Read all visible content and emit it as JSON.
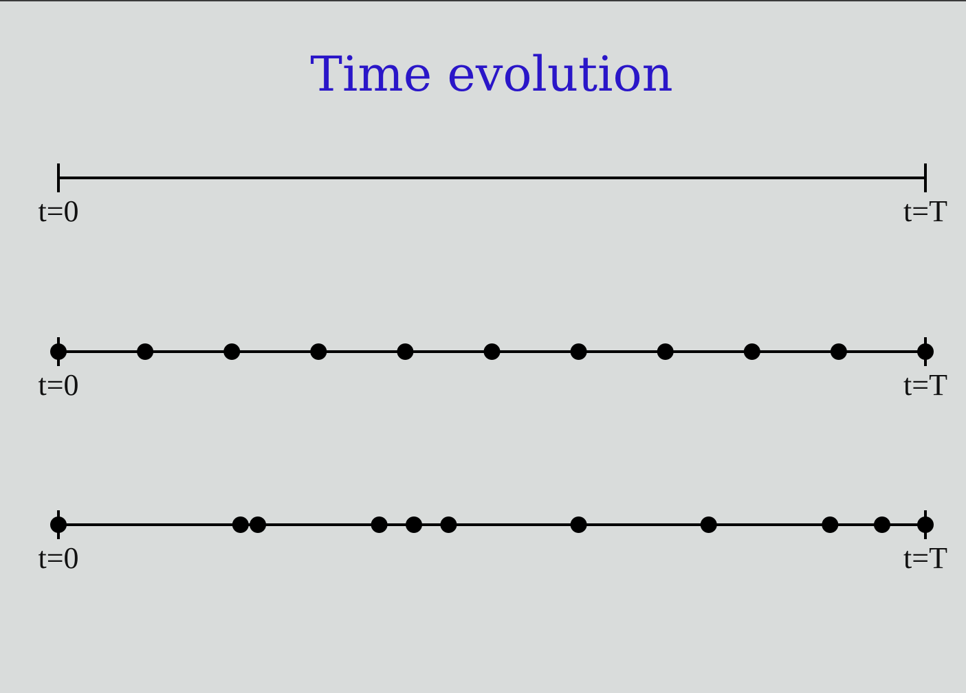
{
  "title": "Time evolution",
  "timelines": [
    {
      "style": "plain",
      "start_label": "t=0",
      "end_label": "t=T",
      "points": []
    },
    {
      "style": "uniform",
      "start_label": "t=0",
      "end_label": "t=T",
      "points": [
        0,
        0.1,
        0.2,
        0.3,
        0.4,
        0.5,
        0.6,
        0.7,
        0.8,
        0.9,
        1.0
      ]
    },
    {
      "style": "random",
      "start_label": "t=0",
      "end_label": "t=T",
      "points": [
        0,
        0.21,
        0.23,
        0.37,
        0.41,
        0.45,
        0.6,
        0.75,
        0.89,
        0.95,
        1.0
      ]
    }
  ],
  "colors": {
    "background": "#d9dcdb",
    "title": "#2a16c8",
    "line": "#000000"
  }
}
